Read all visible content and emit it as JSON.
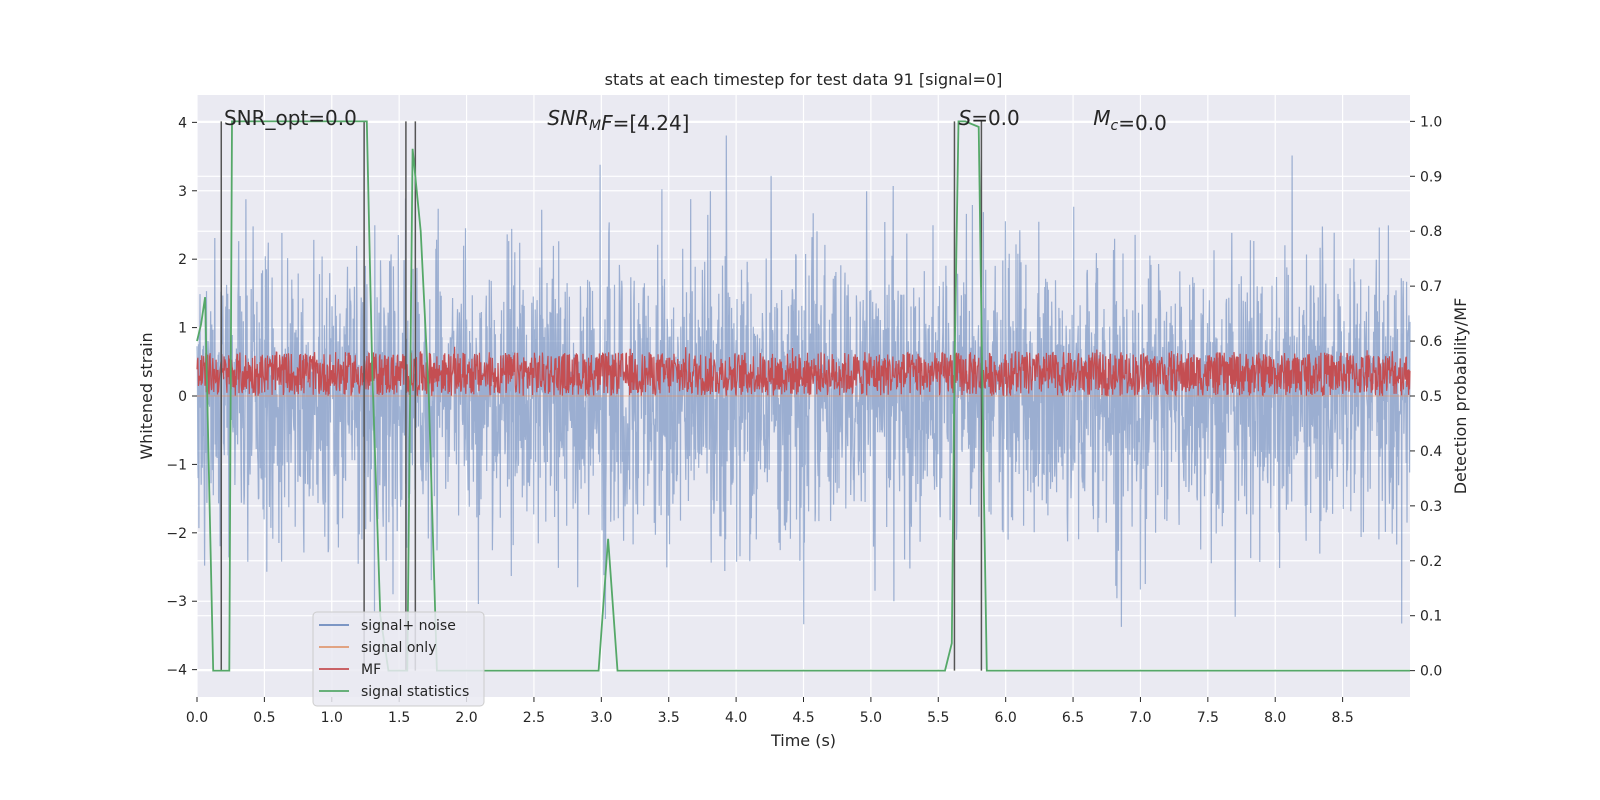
{
  "chart_data": {
    "type": "line",
    "title": "stats at each timestep for test data 91 [signal=0]",
    "xlabel": "Time (s)",
    "ylabel": "Whitened strain",
    "y2label": "Detection probability/MF",
    "xlim": [
      0.0,
      9.0
    ],
    "ylim": [
      -4.4,
      4.4
    ],
    "y2lim": [
      -0.048,
      1.048
    ],
    "x_ticks": [
      "0.0",
      "0.5",
      "1.0",
      "1.5",
      "2.0",
      "2.5",
      "3.0",
      "3.5",
      "4.0",
      "4.5",
      "5.0",
      "5.5",
      "6.0",
      "6.5",
      "7.0",
      "7.5",
      "8.0",
      "8.5"
    ],
    "x_tick_values": [
      0.0,
      0.5,
      1.0,
      1.5,
      2.0,
      2.5,
      3.0,
      3.5,
      4.0,
      4.5,
      5.0,
      5.5,
      6.0,
      6.5,
      7.0,
      7.5,
      8.0,
      8.5
    ],
    "y_ticks": [
      "4",
      "3",
      "2",
      "1",
      "0",
      "−1",
      "−2",
      "−3",
      "−4"
    ],
    "y_tick_values": [
      4,
      3,
      2,
      1,
      0,
      -1,
      -2,
      -3,
      -4
    ],
    "y2_ticks": [
      "1.0",
      "0.9",
      "0.8",
      "0.7",
      "0.6",
      "0.5",
      "0.4",
      "0.3",
      "0.2",
      "0.1",
      "0.0"
    ],
    "y2_tick_values": [
      1.0,
      0.9,
      0.8,
      0.7,
      0.6,
      0.5,
      0.4,
      0.3,
      0.2,
      0.1,
      0.0
    ],
    "grid": true,
    "legend_position": "lower-left",
    "background": "#eaeaf2",
    "annotations": [
      {
        "x": 0.2,
        "y": 4.05,
        "plain": "SNR_opt=0.0"
      },
      {
        "x": 2.6,
        "y": 4.05,
        "italic": "SNR",
        "sub": "M",
        "italic2": "F",
        "rest": "=[4.24]"
      },
      {
        "x": 5.65,
        "y": 4.05,
        "italic": "S",
        "rest": "=0.0"
      },
      {
        "x": 6.65,
        "y": 4.05,
        "italic": "M",
        "sub": "c",
        "rest": "=0.0"
      }
    ],
    "series": [
      {
        "name": "signal+ noise",
        "color": "#4c72b0",
        "opacity": 0.5,
        "description": "noise fluctuates mostly within about -2.5 to 2.5, occasional spikes near +/-3.5",
        "amplitude": 1.0
      },
      {
        "name": "signal only",
        "color": "#dd8452",
        "opacity": 0.5,
        "values_note": "zero",
        "value": 0
      },
      {
        "name": "MF",
        "color": "#c44e52",
        "axis": "right",
        "range": [
          0.5,
          0.58
        ]
      },
      {
        "name": "signal statistics",
        "color": "#55a868",
        "axis": "right",
        "x": [
          0.0,
          0.03,
          0.06,
          0.12,
          0.18,
          0.24,
          0.26,
          1.24,
          1.26,
          1.3,
          1.36,
          1.42,
          1.5,
          1.56,
          1.6,
          1.66,
          1.72,
          1.78,
          2.0,
          2.3,
          2.6,
          2.98,
          3.05,
          3.12,
          3.3,
          4.0,
          5.0,
          5.5,
          5.55,
          5.6,
          5.62,
          5.65,
          5.7,
          5.8,
          5.84,
          5.86,
          5.9,
          6.5,
          7.0,
          8.0,
          9.0
        ],
        "y": [
          0.6,
          0.63,
          0.68,
          0.0,
          0.0,
          0.0,
          1.0,
          1.0,
          1.0,
          0.55,
          0.1,
          0.0,
          0.0,
          0.0,
          0.95,
          0.8,
          0.5,
          0.0,
          0.0,
          0.0,
          0.0,
          0.0,
          0.24,
          0.0,
          0.0,
          0.0,
          0.0,
          0.0,
          0.0,
          0.05,
          0.55,
          1.0,
          1.0,
          0.99,
          0.3,
          0.0,
          0.0,
          0.0,
          0.0,
          0.0,
          0.0
        ]
      }
    ],
    "vertical_markers": [
      {
        "x": 0.18,
        "y2": [
          0.0,
          1.0
        ]
      },
      {
        "x": 1.24,
        "y2": [
          0.0,
          1.0
        ]
      },
      {
        "x": 1.55,
        "y2": [
          0.0,
          1.0
        ]
      },
      {
        "x": 1.62,
        "y2": [
          0.0,
          1.0
        ]
      },
      {
        "x": 5.62,
        "y2": [
          0.0,
          1.0
        ]
      },
      {
        "x": 5.82,
        "y2": [
          0.0,
          1.0
        ]
      }
    ]
  }
}
